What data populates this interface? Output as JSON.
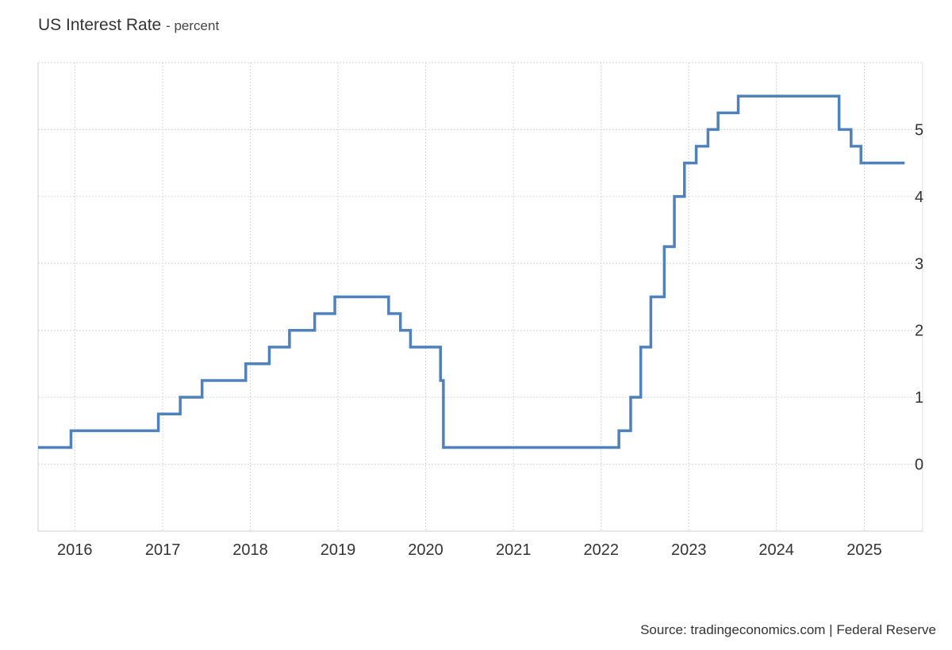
{
  "chart_data": {
    "type": "line",
    "title": "US Interest Rate",
    "subtitle": "percent",
    "xlabel": "",
    "ylabel": "",
    "source": "Source: tradingeconomics.com | Federal Reserve",
    "x_ticks": [
      "2016",
      "2017",
      "2018",
      "2019",
      "2020",
      "2021",
      "2022",
      "2023",
      "2024",
      "2025"
    ],
    "y_ticks": [
      "0",
      "1",
      "2",
      "3",
      "4",
      "5"
    ],
    "xlim": [
      "2015-08-01",
      "2025-09-01"
    ],
    "ylim": [
      -1,
      6
    ],
    "grid": true,
    "legend": "none",
    "line_color": "#4f81bd",
    "series": [
      {
        "step": true,
        "points": [
          [
            "2015-08-01",
            0.25
          ],
          [
            "2015-12-16",
            0.5
          ],
          [
            "2016-12-14",
            0.75
          ],
          [
            "2017-03-15",
            1.0
          ],
          [
            "2017-06-14",
            1.25
          ],
          [
            "2017-12-13",
            1.5
          ],
          [
            "2018-03-21",
            1.75
          ],
          [
            "2018-06-13",
            2.0
          ],
          [
            "2018-09-26",
            2.25
          ],
          [
            "2018-12-19",
            2.5
          ],
          [
            "2019-07-31",
            2.25
          ],
          [
            "2019-09-18",
            2.0
          ],
          [
            "2019-10-30",
            1.75
          ],
          [
            "2020-03-03",
            1.25
          ],
          [
            "2020-03-15",
            0.25
          ],
          [
            "2022-03-16",
            0.5
          ],
          [
            "2022-05-04",
            1.0
          ],
          [
            "2022-06-15",
            1.75
          ],
          [
            "2022-07-27",
            2.5
          ],
          [
            "2022-09-21",
            3.25
          ],
          [
            "2022-11-02",
            4.0
          ],
          [
            "2022-12-14",
            4.5
          ],
          [
            "2023-02-01",
            4.75
          ],
          [
            "2023-03-22",
            5.0
          ],
          [
            "2023-05-03",
            5.25
          ],
          [
            "2023-07-26",
            5.5
          ],
          [
            "2024-09-18",
            5.0
          ],
          [
            "2024-11-07",
            4.75
          ],
          [
            "2024-12-18",
            4.5
          ],
          [
            "2025-06-18",
            4.5
          ]
        ]
      }
    ]
  }
}
